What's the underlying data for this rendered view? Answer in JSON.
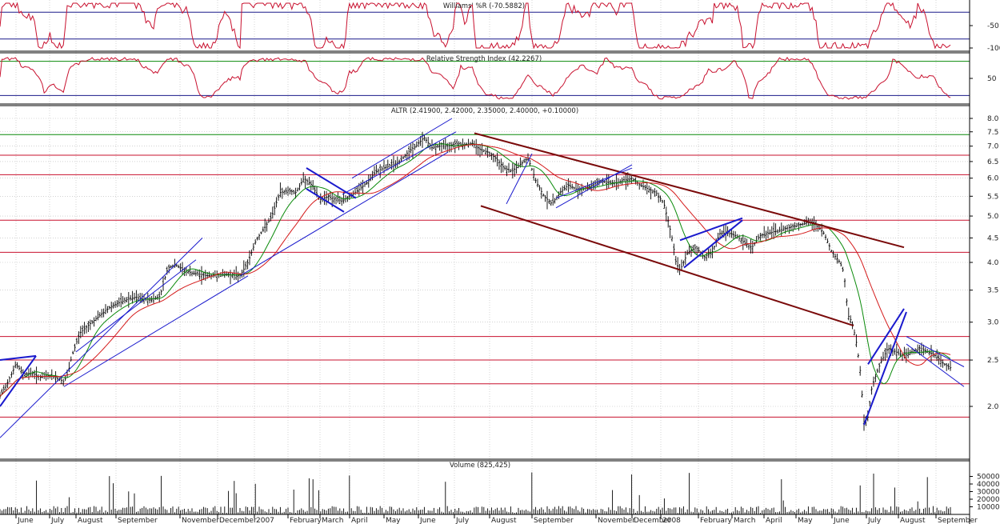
{
  "colors": {
    "background": "#ffffff",
    "grid": "#b8b8b8",
    "frame": "#000000",
    "price_bars": "#000000",
    "ma_short": "#0a8a0a",
    "ma_long": "#d41a1a",
    "horizontal_levels": "#c8102e",
    "channel_maroon": "#7a0a0a",
    "trendline_blue": "#1a1acd",
    "indicator_line": "#c8102e",
    "indicator_band": "#1a1a8a",
    "volume_bars": "#000000"
  },
  "x_months": [
    "June",
    "July",
    "August",
    "September",
    "November",
    "December",
    "2007",
    "February",
    "March",
    "April",
    "May",
    "June",
    "July",
    "August",
    "September",
    "November",
    "December",
    "2008",
    "February",
    "March",
    "April",
    "May",
    "June",
    "July",
    "August",
    "September"
  ],
  "chart_data": [
    {
      "type": "line",
      "panel": "williams_r",
      "title": "Williams' %R (-70.5882)",
      "last_value": -70.5882,
      "yticks": [
        "-50",
        "-100"
      ],
      "ylim": [
        -100,
        0
      ],
      "reference_levels": [
        -20,
        -80
      ],
      "grid": true
    },
    {
      "type": "line",
      "panel": "rsi",
      "title": "Relative Strength Index (42.2267)",
      "last_value": 42.2267,
      "yticks": [
        "50"
      ],
      "ylim": [
        20,
        80
      ],
      "reference_levels": [
        30,
        70
      ],
      "grid": true
    },
    {
      "type": "line",
      "panel": "price",
      "title": "ALTR (2.41900, 2.42000, 2.35000, 2.40000, +0.10000)",
      "ohlc_last": {
        "open": 2.419,
        "high": 2.42,
        "low": 2.35,
        "close": 2.4,
        "change": 0.1
      },
      "scale": "log",
      "ylim": [
        1.5,
        8.2
      ],
      "yticks": [
        "8.0",
        "7.5",
        "7.0",
        "6.5",
        "6.0",
        "5.5",
        "5.0",
        "4.5",
        "4.0",
        "3.5",
        "3.0",
        "2.5",
        "2.0"
      ],
      "horizontal_levels": [
        7.4,
        6.7,
        6.1,
        4.9,
        4.2,
        2.8,
        2.5,
        2.23,
        1.9
      ],
      "green_level": 7.4,
      "close_path": [
        [
          0,
          2.1
        ],
        [
          10,
          2.25
        ],
        [
          20,
          2.45
        ],
        [
          30,
          2.33
        ],
        [
          40,
          2.35
        ],
        [
          50,
          2.3
        ],
        [
          60,
          2.32
        ],
        [
          70,
          2.3
        ],
        [
          80,
          2.25
        ],
        [
          85,
          2.35
        ],
        [
          90,
          2.55
        ],
        [
          100,
          2.85
        ],
        [
          110,
          2.95
        ],
        [
          120,
          3.05
        ],
        [
          130,
          3.15
        ],
        [
          140,
          3.25
        ],
        [
          150,
          3.3
        ],
        [
          160,
          3.35
        ],
        [
          170,
          3.38
        ],
        [
          180,
          3.35
        ],
        [
          190,
          3.35
        ],
        [
          200,
          3.4
        ],
        [
          210,
          3.9
        ],
        [
          220,
          3.95
        ],
        [
          230,
          3.85
        ],
        [
          240,
          3.8
        ],
        [
          260,
          3.75
        ],
        [
          280,
          3.78
        ],
        [
          300,
          3.75
        ],
        [
          310,
          4.0
        ],
        [
          320,
          4.45
        ],
        [
          330,
          4.7
        ],
        [
          340,
          5.0
        ],
        [
          350,
          5.6
        ],
        [
          360,
          5.65
        ],
        [
          370,
          5.6
        ],
        [
          380,
          6.0
        ],
        [
          390,
          5.8
        ],
        [
          400,
          5.4
        ],
        [
          410,
          5.5
        ],
        [
          420,
          5.4
        ],
        [
          430,
          5.4
        ],
        [
          440,
          5.55
        ],
        [
          450,
          5.7
        ],
        [
          460,
          5.9
        ],
        [
          470,
          6.2
        ],
        [
          480,
          6.3
        ],
        [
          490,
          6.4
        ],
        [
          500,
          6.5
        ],
        [
          510,
          6.8
        ],
        [
          520,
          7.0
        ],
        [
          530,
          7.3
        ],
        [
          540,
          6.95
        ],
        [
          550,
          7.0
        ],
        [
          560,
          7.0
        ],
        [
          570,
          7.1
        ],
        [
          580,
          7.05
        ],
        [
          590,
          7.1
        ],
        [
          600,
          6.9
        ],
        [
          610,
          6.8
        ],
        [
          620,
          6.6
        ],
        [
          630,
          6.3
        ],
        [
          640,
          6.2
        ],
        [
          650,
          6.4
        ],
        [
          660,
          6.6
        ],
        [
          670,
          5.9
        ],
        [
          680,
          5.5
        ],
        [
          690,
          5.3
        ],
        [
          700,
          5.6
        ],
        [
          710,
          5.8
        ],
        [
          720,
          5.7
        ],
        [
          730,
          5.7
        ],
        [
          740,
          5.8
        ],
        [
          750,
          5.9
        ],
        [
          760,
          5.9
        ],
        [
          770,
          5.85
        ],
        [
          780,
          5.95
        ],
        [
          790,
          6.0
        ],
        [
          800,
          5.8
        ],
        [
          810,
          5.7
        ],
        [
          820,
          5.6
        ],
        [
          830,
          5.3
        ],
        [
          840,
          4.5
        ],
        [
          845,
          4.0
        ],
        [
          850,
          3.85
        ],
        [
          860,
          4.2
        ],
        [
          870,
          4.3
        ],
        [
          880,
          4.1
        ],
        [
          890,
          4.2
        ],
        [
          900,
          4.6
        ],
        [
          910,
          4.6
        ],
        [
          920,
          4.55
        ],
        [
          930,
          4.4
        ],
        [
          940,
          4.3
        ],
        [
          950,
          4.55
        ],
        [
          960,
          4.6
        ],
        [
          970,
          4.65
        ],
        [
          980,
          4.7
        ],
        [
          990,
          4.75
        ],
        [
          1000,
          4.8
        ],
        [
          1010,
          4.85
        ],
        [
          1020,
          4.8
        ],
        [
          1030,
          4.6
        ],
        [
          1040,
          4.2
        ],
        [
          1050,
          4.0
        ],
        [
          1055,
          3.8
        ],
        [
          1060,
          3.1
        ],
        [
          1065,
          3.0
        ],
        [
          1070,
          2.75
        ],
        [
          1075,
          2.4
        ],
        [
          1080,
          1.85
        ],
        [
          1085,
          1.9
        ],
        [
          1090,
          2.2
        ],
        [
          1100,
          2.45
        ],
        [
          1110,
          2.65
        ],
        [
          1120,
          2.6
        ],
        [
          1130,
          2.55
        ],
        [
          1140,
          2.6
        ],
        [
          1150,
          2.65
        ],
        [
          1160,
          2.6
        ],
        [
          1170,
          2.55
        ],
        [
          1180,
          2.45
        ],
        [
          1190,
          2.4
        ]
      ]
    },
    {
      "type": "bar",
      "panel": "volume",
      "title": "Volume (825,425)",
      "last_value": 825425,
      "yticks": [
        "50000",
        "40000",
        "30000",
        "20000",
        "10000"
      ],
      "ylim": [
        0,
        60000
      ],
      "scale_note": "x100"
    }
  ]
}
